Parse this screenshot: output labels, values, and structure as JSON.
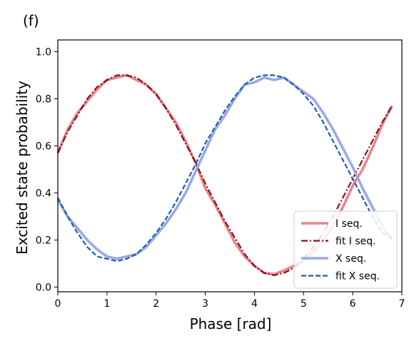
{
  "panel_label": "(f)",
  "chart_data": {
    "type": "line",
    "xlabel": "Phase [rad]",
    "ylabel": "Excited state probability",
    "xlim": [
      0,
      7
    ],
    "ylim": [
      -0.02,
      1.05
    ],
    "xticks": [
      0,
      1,
      2,
      3,
      4,
      5,
      6,
      7
    ],
    "yticks": [
      0.0,
      0.2,
      0.4,
      0.6,
      0.8,
      1.0
    ],
    "xtick_labels": [
      "0",
      "1",
      "2",
      "3",
      "4",
      "5",
      "6",
      "7"
    ],
    "ytick_labels": [
      "0.0",
      "0.2",
      "0.4",
      "0.6",
      "0.8",
      "1.0"
    ],
    "grid": false,
    "legend_position": "bottom-right",
    "series": [
      {
        "name": "I seq.",
        "style": "solid-thick",
        "color": "#e8858c",
        "x": [
          0,
          0.2,
          0.4,
          0.6,
          0.8,
          1.0,
          1.2,
          1.4,
          1.6,
          1.8,
          2.0,
          2.2,
          2.4,
          2.6,
          2.8,
          3.0,
          3.2,
          3.4,
          3.6,
          3.8,
          4.0,
          4.2,
          4.4,
          4.6,
          4.8,
          5.0,
          5.2,
          5.4,
          5.6,
          5.8,
          6.0,
          6.2,
          6.4,
          6.6,
          6.8
        ],
        "y": [
          0.57,
          0.67,
          0.74,
          0.79,
          0.84,
          0.88,
          0.89,
          0.9,
          0.88,
          0.86,
          0.82,
          0.76,
          0.7,
          0.62,
          0.53,
          0.42,
          0.35,
          0.27,
          0.19,
          0.13,
          0.09,
          0.06,
          0.055,
          0.07,
          0.09,
          0.11,
          0.15,
          0.2,
          0.26,
          0.34,
          0.43,
          0.5,
          0.59,
          0.69,
          0.77
        ]
      },
      {
        "name": "fit I seq.",
        "style": "dashdot",
        "color": "#8b0f1c",
        "x": [
          0,
          0.2,
          0.4,
          0.6,
          0.8,
          1.0,
          1.2,
          1.4,
          1.6,
          1.8,
          2.0,
          2.2,
          2.4,
          2.6,
          2.8,
          3.0,
          3.2,
          3.4,
          3.6,
          3.8,
          4.0,
          4.2,
          4.4,
          4.6,
          4.8,
          5.0,
          5.2,
          5.4,
          5.6,
          5.8,
          6.0,
          6.2,
          6.4,
          6.6,
          6.8
        ],
        "y": [
          0.57,
          0.66,
          0.73,
          0.8,
          0.85,
          0.88,
          0.9,
          0.9,
          0.89,
          0.86,
          0.82,
          0.76,
          0.69,
          0.61,
          0.53,
          0.44,
          0.36,
          0.28,
          0.21,
          0.14,
          0.09,
          0.06,
          0.05,
          0.06,
          0.08,
          0.12,
          0.17,
          0.23,
          0.3,
          0.38,
          0.46,
          0.54,
          0.62,
          0.7,
          0.77
        ]
      },
      {
        "name": "X seq.",
        "style": "solid-thick",
        "color": "#9aa8ea",
        "x": [
          0,
          0.2,
          0.4,
          0.6,
          0.8,
          1.0,
          1.2,
          1.4,
          1.6,
          1.8,
          2.0,
          2.2,
          2.4,
          2.6,
          2.8,
          3.0,
          3.2,
          3.4,
          3.6,
          3.8,
          4.0,
          4.2,
          4.4,
          4.6,
          4.8,
          5.0,
          5.2,
          5.4,
          5.6,
          5.8,
          6.0,
          6.2,
          6.4,
          6.6,
          6.8
        ],
        "y": [
          0.37,
          0.3,
          0.25,
          0.2,
          0.16,
          0.13,
          0.12,
          0.13,
          0.14,
          0.17,
          0.22,
          0.27,
          0.33,
          0.4,
          0.49,
          0.58,
          0.67,
          0.73,
          0.8,
          0.86,
          0.87,
          0.89,
          0.88,
          0.89,
          0.86,
          0.83,
          0.8,
          0.74,
          0.67,
          0.59,
          0.51,
          0.42,
          0.34,
          0.26,
          0.2
        ]
      },
      {
        "name": "fit X seq.",
        "style": "dashed",
        "color": "#1f5ea8",
        "x": [
          0,
          0.2,
          0.4,
          0.6,
          0.8,
          1.0,
          1.2,
          1.4,
          1.6,
          1.8,
          2.0,
          2.2,
          2.4,
          2.6,
          2.8,
          3.0,
          3.2,
          3.4,
          3.6,
          3.8,
          4.0,
          4.2,
          4.4,
          4.6,
          4.8,
          5.0,
          5.2,
          5.4,
          5.6,
          5.8,
          6.0,
          6.2,
          6.4,
          6.6,
          6.8
        ],
        "y": [
          0.38,
          0.3,
          0.23,
          0.17,
          0.13,
          0.12,
          0.11,
          0.12,
          0.14,
          0.18,
          0.23,
          0.29,
          0.36,
          0.44,
          0.52,
          0.61,
          0.68,
          0.75,
          0.81,
          0.86,
          0.89,
          0.9,
          0.9,
          0.89,
          0.86,
          0.82,
          0.77,
          0.7,
          0.62,
          0.54,
          0.46,
          0.38,
          0.3,
          0.23,
          0.21
        ]
      }
    ]
  }
}
